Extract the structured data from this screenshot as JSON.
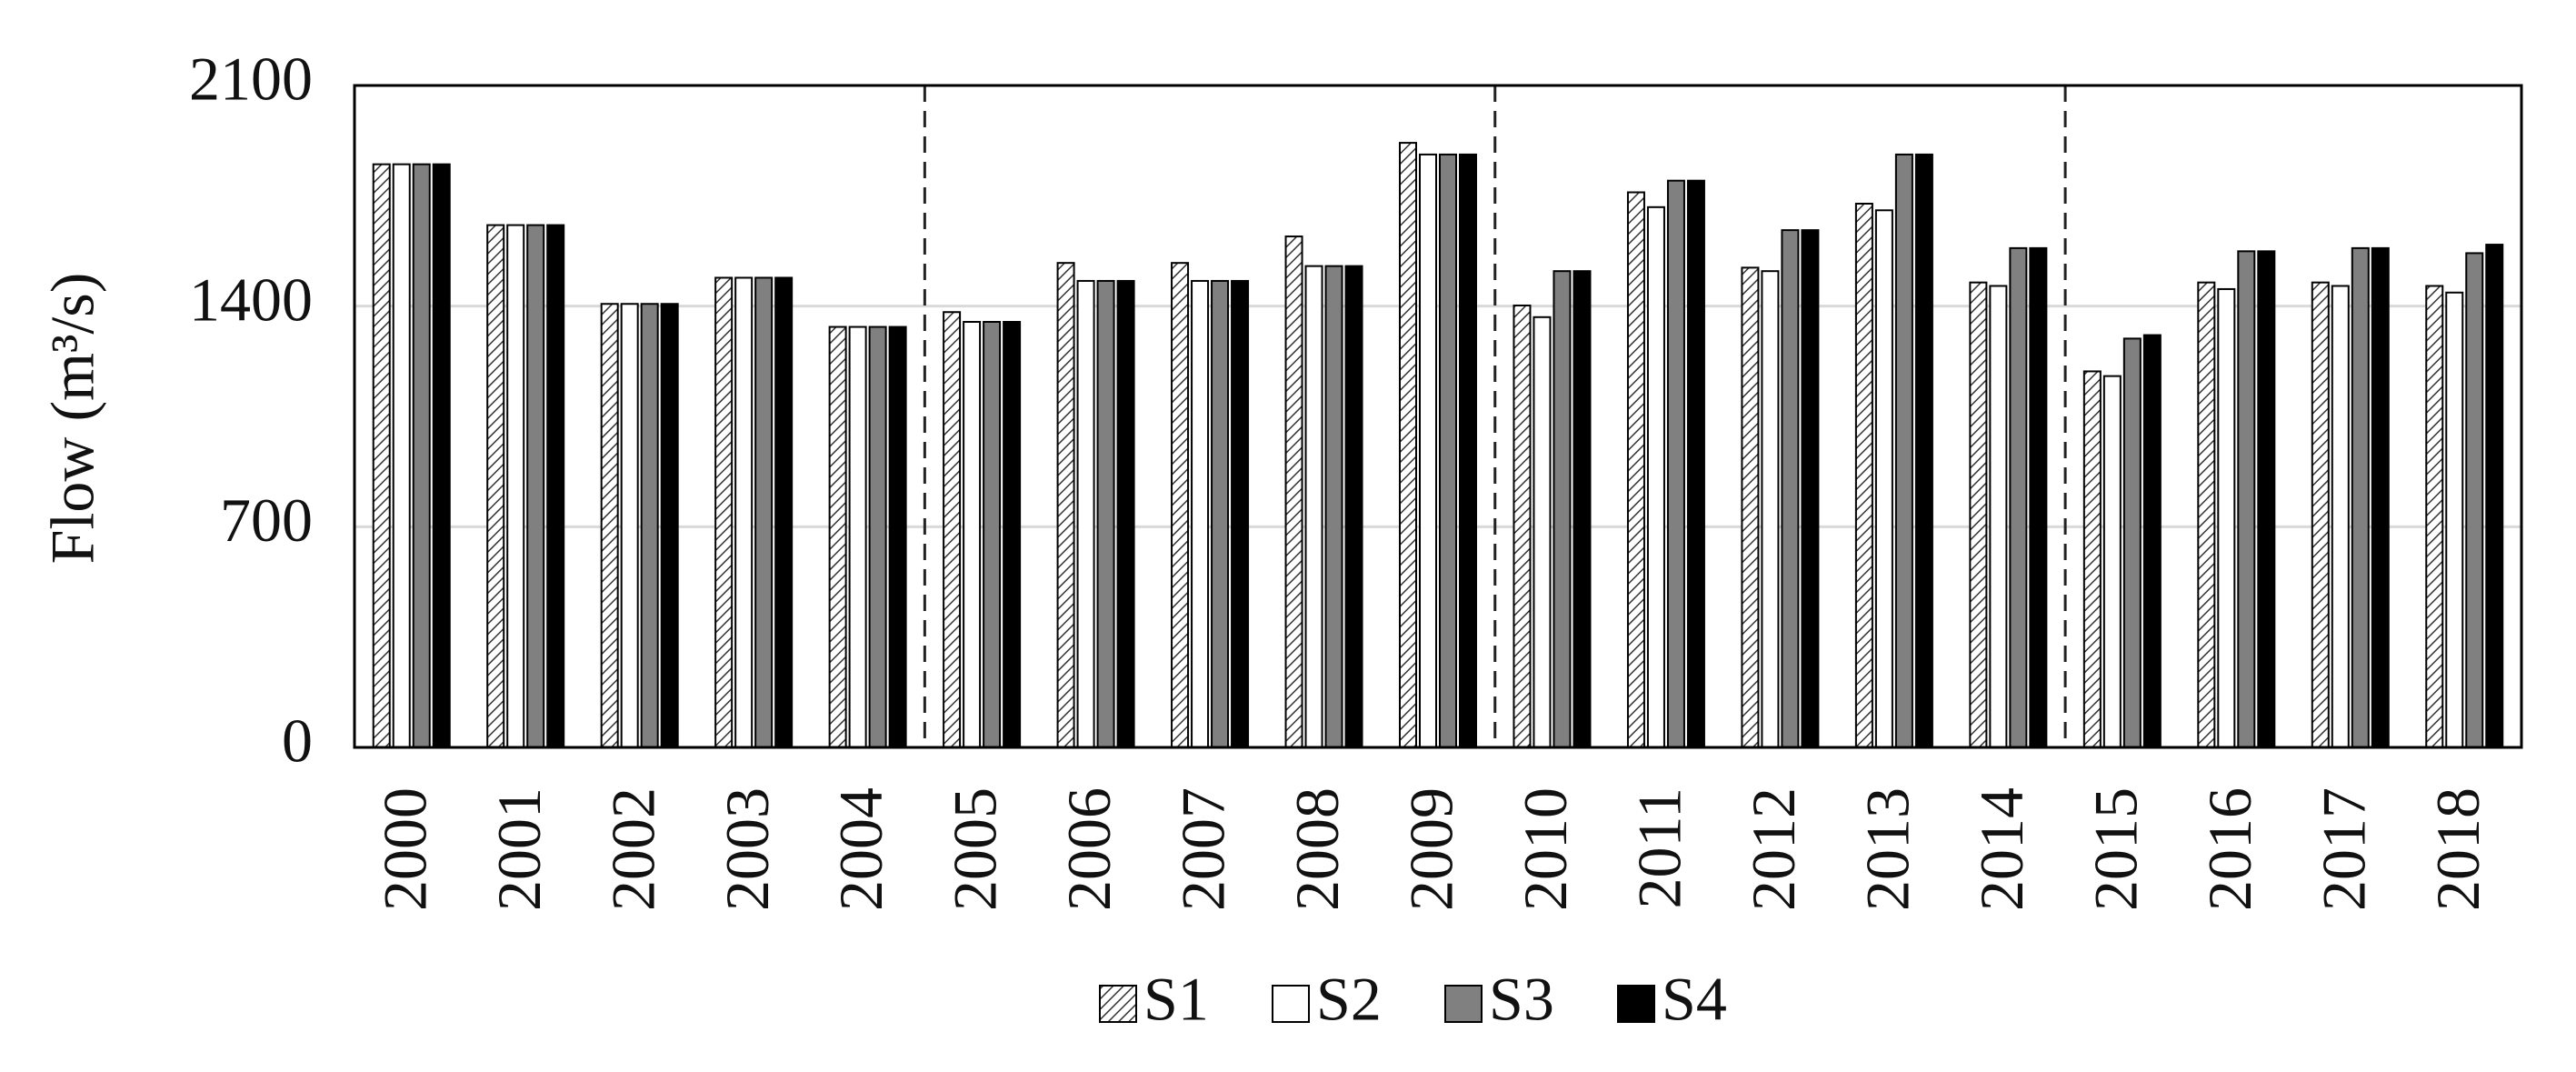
{
  "chart_data": {
    "type": "bar",
    "y_label": "Flow (m³/s)",
    "categories": [
      "2000",
      "2001",
      "2002",
      "2003",
      "2004",
      "2005",
      "2006",
      "2007",
      "2008",
      "2009",
      "2010",
      "2011",
      "2012",
      "2013",
      "2014",
      "2015",
      "2016",
      "2017",
      "2018"
    ],
    "series": [
      {
        "name": "S1",
        "color": "#ffffff",
        "pattern": "hatch",
        "values": [
          1850,
          1657,
          1407,
          1490,
          1334,
          1381,
          1537,
          1537,
          1621,
          1918,
          1402,
          1761,
          1522,
          1725,
          1475,
          1193,
          1475,
          1475,
          1464
        ]
      },
      {
        "name": "S2",
        "color": "#ffffff",
        "values": [
          1850,
          1657,
          1407,
          1490,
          1334,
          1350,
          1480,
          1480,
          1527,
          1881,
          1365,
          1714,
          1511,
          1704,
          1464,
          1178,
          1454,
          1464,
          1443
        ]
      },
      {
        "name": "S3",
        "color": "#808080",
        "values": [
          1850,
          1657,
          1407,
          1490,
          1334,
          1350,
          1480,
          1480,
          1527,
          1881,
          1511,
          1798,
          1641,
          1881,
          1584,
          1297,
          1574,
          1584,
          1568
        ]
      },
      {
        "name": "S4",
        "color": "#000000",
        "values": [
          1850,
          1657,
          1407,
          1490,
          1334,
          1350,
          1480,
          1480,
          1527,
          1881,
          1511,
          1798,
          1641,
          1881,
          1584,
          1308,
          1574,
          1584,
          1595
        ]
      }
    ],
    "ylim": [
      0,
      2100
    ],
    "yticks": [
      0,
      700,
      1400,
      2100
    ],
    "grid": true,
    "legend": "bottom"
  }
}
